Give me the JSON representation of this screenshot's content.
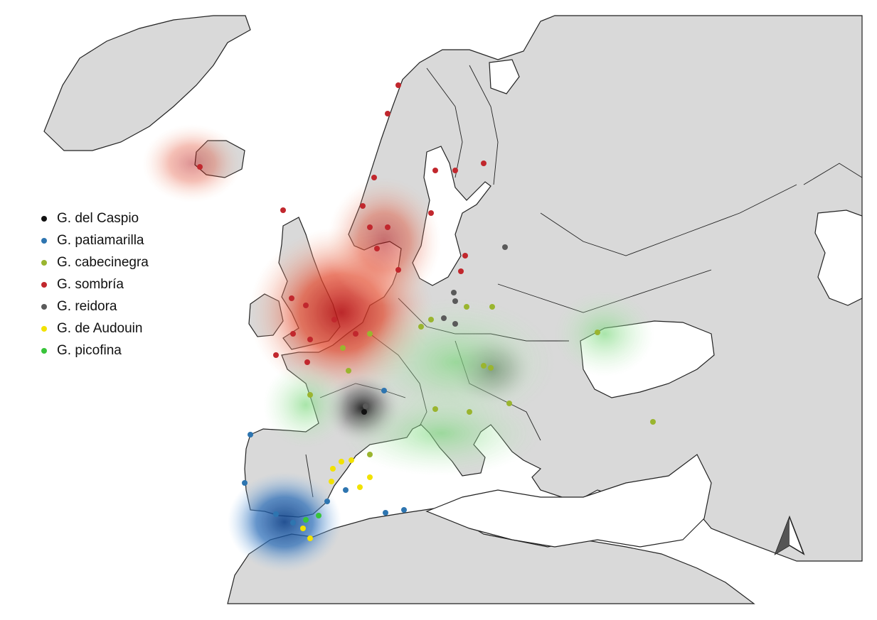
{
  "legend": {
    "items": [
      {
        "label": "G. del Caspio",
        "color": "#111111"
      },
      {
        "label": "G. patiamarilla",
        "color": "#2e75b0"
      },
      {
        "label": "G. cabecinegra",
        "color": "#9ab52f"
      },
      {
        "label": "G. sombría",
        "color": "#c1272d"
      },
      {
        "label": "G. reidora",
        "color": "#5a5a5a"
      },
      {
        "label": "G. de Audouin",
        "color": "#f2e200"
      },
      {
        "label": "G. picofina",
        "color": "#38c43a"
      }
    ]
  },
  "north_arrow": {
    "icon": "north-arrow-icon"
  },
  "colors": {
    "land": "#d9d9d9",
    "sea": "#ffffff",
    "border": "#222222"
  }
}
